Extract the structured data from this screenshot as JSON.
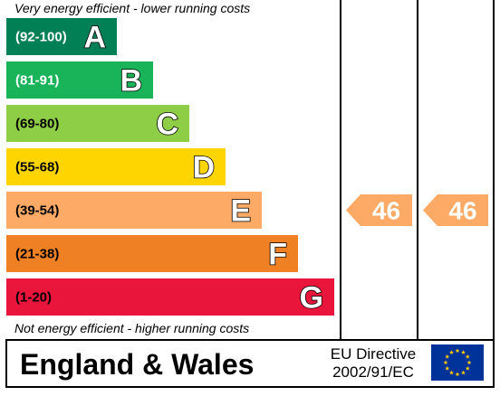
{
  "chart_data": {
    "type": "bar",
    "top_note": "Very energy efficient - lower running costs",
    "bottom_note": "Not energy efficient - higher running costs",
    "bands": [
      {
        "range": "(92-100)",
        "letter": "A",
        "color": "#008054",
        "range_color": "#ffffff"
      },
      {
        "range": "(81-91)",
        "letter": "B",
        "color": "#19b459",
        "range_color": "#ffffff"
      },
      {
        "range": "(69-80)",
        "letter": "C",
        "color": "#8dce46",
        "range_color": "#000000"
      },
      {
        "range": "(55-68)",
        "letter": "D",
        "color": "#ffd500",
        "range_color": "#000000"
      },
      {
        "range": "(39-54)",
        "letter": "E",
        "color": "#fcaa65",
        "range_color": "#000000"
      },
      {
        "range": "(21-38)",
        "letter": "F",
        "color": "#ef8023",
        "range_color": "#000000"
      },
      {
        "range": "(1-20)",
        "letter": "G",
        "color": "#e9153b",
        "range_color": "#000000"
      }
    ],
    "current": {
      "value": 46,
      "band": "E",
      "color": "#fcaa65"
    },
    "potential": {
      "value": 46,
      "band": "E",
      "color": "#fcaa65"
    },
    "region": "England & Wales",
    "directive_line1": "EU Directive",
    "directive_line2": "2002/91/EC",
    "eu_flag": {
      "background": "#003399",
      "stars": "#ffcc00"
    }
  }
}
